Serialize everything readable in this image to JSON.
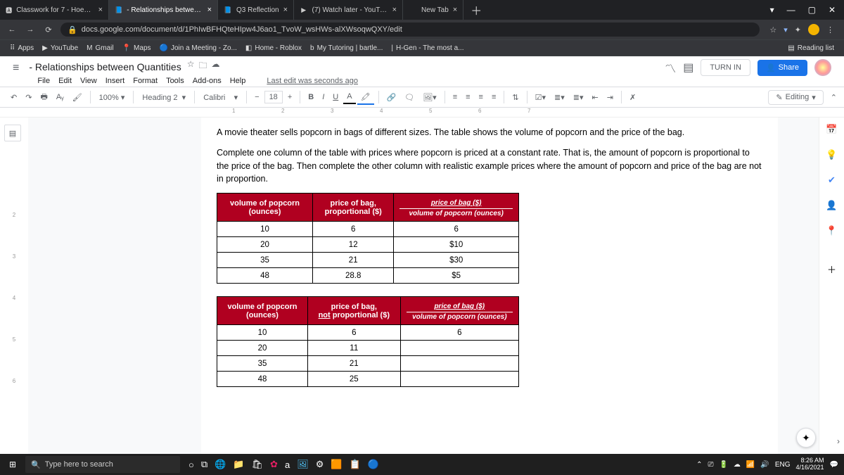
{
  "tabs": [
    {
      "label": "Classwork for 7 - Hoeck - Mod 2",
      "icon": "🅰",
      "active": false
    },
    {
      "label": "- Relationships between Quantiti",
      "icon": "📘",
      "active": true
    },
    {
      "label": "Q3 Reflection",
      "icon": "📘",
      "active": false
    },
    {
      "label": "(7) Watch later - YouTube",
      "icon": "▶",
      "active": false
    },
    {
      "label": "New Tab",
      "icon": "",
      "active": false
    }
  ],
  "url": "docs.google.com/document/d/1PhIwBFHQteHIpw4J6ao1_TvoW_wsHWs-alXWsoqwQXY/edit",
  "bookmarks": [
    {
      "label": "Apps",
      "icon": "⠿"
    },
    {
      "label": "YouTube",
      "icon": "▶"
    },
    {
      "label": "Gmail",
      "icon": "M"
    },
    {
      "label": "Maps",
      "icon": "📍"
    },
    {
      "label": "Join a Meeting - Zo...",
      "icon": "🔵"
    },
    {
      "label": "Home - Roblox",
      "icon": "◧"
    },
    {
      "label": "My Tutoring | bartle...",
      "icon": "b"
    },
    {
      "label": "H-Gen - The most a...",
      "icon": "|"
    }
  ],
  "reading_list": "Reading list",
  "doc": {
    "title": "- Relationships between Quantities",
    "menus": [
      "File",
      "Edit",
      "View",
      "Insert",
      "Format",
      "Tools",
      "Add-ons",
      "Help"
    ],
    "last_edit": "Last edit was seconds ago",
    "turn_in": "TURN IN",
    "share": "Share",
    "editing": "Editing"
  },
  "toolbar": {
    "zoom": "100%",
    "style": "Heading 2",
    "font": "Calibri",
    "size": "18"
  },
  "paragraph1": "A movie theater sells popcorn in bags of different sizes. The table shows the volume of popcorn and the price of the bag.",
  "paragraph2": "Complete one column of the table with prices where popcorn is priced at a constant rate. That is, the amount of popcorn is proportional to the price of the bag. Then complete the other column with realistic example prices where the amount of popcorn and price of the bag are not in proportion.",
  "table1": {
    "headers": [
      {
        "line1": "volume of popcorn",
        "line2": "(ounces)"
      },
      {
        "line1": "price of bag,",
        "line2": "proportional ($)"
      },
      {
        "line1": "price of bag ($)",
        "line2": "volume of popcorn (ounces)",
        "italic": true
      }
    ],
    "rows": [
      [
        "10",
        "6",
        "6"
      ],
      [
        "20",
        "12",
        "$10"
      ],
      [
        "35",
        "21",
        "$30"
      ],
      [
        "48",
        "28.8",
        "$5"
      ]
    ]
  },
  "table2": {
    "headers": [
      {
        "line1": "volume of popcorn",
        "line2": "(ounces)"
      },
      {
        "line1": "price of bag,",
        "line2_prefix": "not",
        "line2": " proportional ($)"
      },
      {
        "line1": "price of bag ($)",
        "line2": "volume of popcorn (ounces)",
        "italic": true
      }
    ],
    "rows": [
      [
        "10",
        "6",
        "6"
      ],
      [
        "20",
        "11",
        ""
      ],
      [
        "35",
        "21",
        ""
      ],
      [
        "48",
        "25",
        ""
      ]
    ]
  },
  "task": {
    "search": "Type here to search",
    "time": "8:26 AM",
    "date": "4/16/2021"
  }
}
